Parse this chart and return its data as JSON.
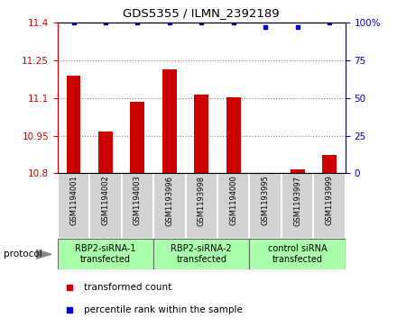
{
  "title": "GDS5355 / ILMN_2392189",
  "samples": [
    "GSM1194001",
    "GSM1194002",
    "GSM1194003",
    "GSM1193996",
    "GSM1193998",
    "GSM1194000",
    "GSM1193995",
    "GSM1193997",
    "GSM1193999"
  ],
  "bar_values": [
    11.19,
    10.965,
    11.085,
    11.215,
    11.115,
    11.105,
    10.803,
    10.815,
    10.875
  ],
  "percentile_values": [
    100,
    100,
    100,
    100,
    100,
    100,
    97,
    97,
    100
  ],
  "ylim": [
    10.8,
    11.4
  ],
  "y2lim": [
    0,
    100
  ],
  "yticks": [
    10.8,
    10.95,
    11.1,
    11.25,
    11.4
  ],
  "ytick_labels": [
    "10.8",
    "10.95",
    "11.1",
    "11.25",
    "11.4"
  ],
  "y2ticks": [
    0,
    25,
    50,
    75,
    100
  ],
  "y2tick_labels": [
    "0",
    "25",
    "50",
    "75",
    "100%"
  ],
  "bar_color": "#cc0000",
  "percentile_color": "#0000cc",
  "bar_bottom": 10.8,
  "groups": [
    {
      "label": "RBP2-siRNA-1\ntransfected",
      "indices": [
        0,
        1,
        2
      ],
      "color": "#aaffaa"
    },
    {
      "label": "RBP2-siRNA-2\ntransfected",
      "indices": [
        3,
        4,
        5
      ],
      "color": "#aaffaa"
    },
    {
      "label": "control siRNA\ntransfected",
      "indices": [
        6,
        7,
        8
      ],
      "color": "#aaffaa"
    }
  ],
  "protocol_label": "protocol",
  "legend_items": [
    {
      "color": "#cc0000",
      "label": "transformed count"
    },
    {
      "color": "#0000cc",
      "label": "percentile rank within the sample"
    }
  ],
  "sample_bg_color": "#d3d3d3",
  "sample_border_color": "#ffffff",
  "bg_color": "#ffffff"
}
